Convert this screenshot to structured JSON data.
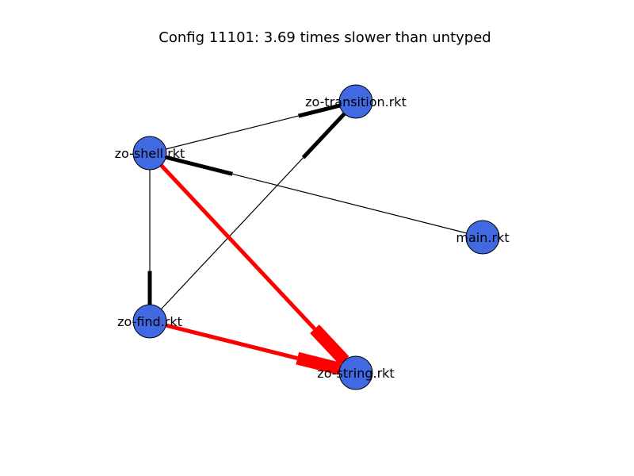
{
  "diagram": {
    "title": "Config 11101: 3.69 times slower than untyped",
    "colors": {
      "node_fill": "#4169e1",
      "node_stroke": "#000000",
      "edge_plain": "#000000",
      "edge_slow": "#ff0000"
    },
    "nodes": [
      {
        "id": "transition",
        "label": "zo-transition.rkt"
      },
      {
        "id": "shell",
        "label": "zo-shell.rkt"
      },
      {
        "id": "main",
        "label": "main.rkt"
      },
      {
        "id": "find",
        "label": "zo-find.rkt"
      },
      {
        "id": "string",
        "label": "zo-string.rkt"
      }
    ],
    "edges": [
      {
        "from": "shell",
        "to": "transition",
        "highlight": false
      },
      {
        "from": "main",
        "to": "shell",
        "highlight": false
      },
      {
        "from": "find",
        "to": "transition",
        "highlight": false
      },
      {
        "from": "shell",
        "to": "find",
        "highlight": false
      },
      {
        "from": "shell",
        "to": "string",
        "highlight": true
      },
      {
        "from": "find",
        "to": "string",
        "highlight": true
      }
    ]
  }
}
